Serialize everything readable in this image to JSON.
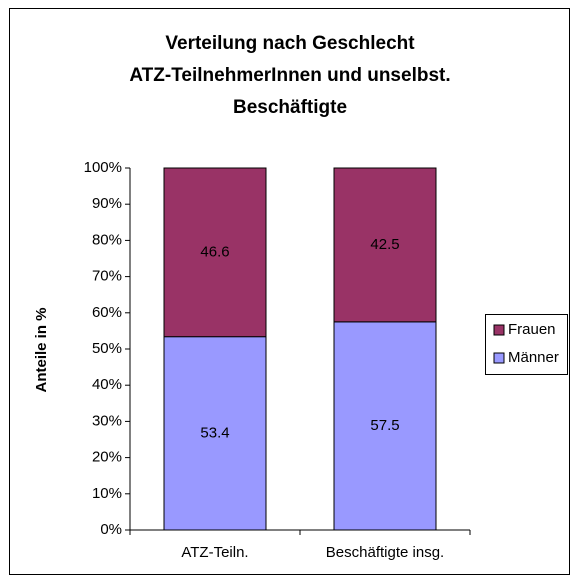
{
  "chart_data": {
    "type": "stacked_bar",
    "title": [
      "Verteilung nach Geschlecht",
      "ATZ-TeilnehmerInnen und unselbst.",
      "Beschäftigte"
    ],
    "ylabel": "Anteile in %",
    "categories": [
      "ATZ-Teiln.",
      "Beschäftigte insg."
    ],
    "series": [
      {
        "name": "Männer",
        "color": "#9999ff",
        "values": [
          53.4,
          57.5
        ]
      },
      {
        "name": "Frauen",
        "color": "#993366",
        "values": [
          46.6,
          42.5
        ]
      }
    ],
    "ylim": [
      0,
      100
    ],
    "yticks": [
      {
        "value": 0,
        "label": "0%"
      },
      {
        "value": 10,
        "label": "10%"
      },
      {
        "value": 20,
        "label": "20%"
      },
      {
        "value": 30,
        "label": "30%"
      },
      {
        "value": 40,
        "label": "40%"
      },
      {
        "value": 50,
        "label": "50%"
      },
      {
        "value": 60,
        "label": "60%"
      },
      {
        "value": 70,
        "label": "70%"
      },
      {
        "value": 80,
        "label": "80%"
      },
      {
        "value": 90,
        "label": "90%"
      },
      {
        "value": 100,
        "label": "100%"
      }
    ],
    "legend": "right"
  }
}
